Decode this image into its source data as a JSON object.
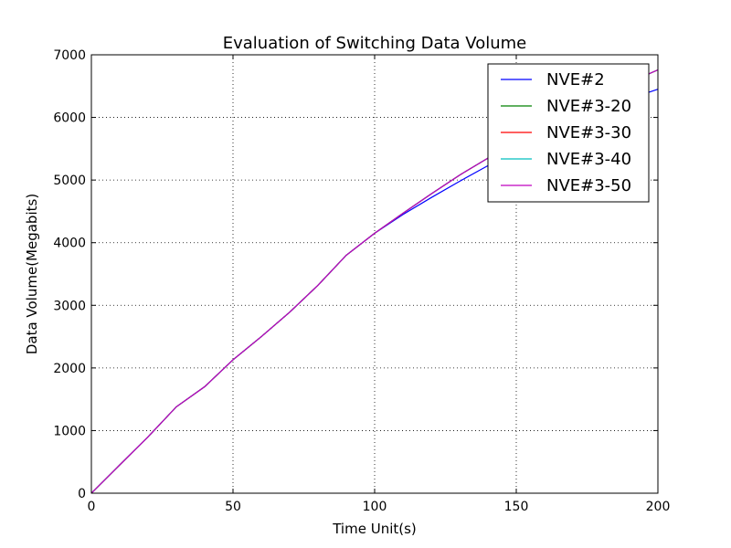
{
  "chart_data": {
    "type": "line",
    "title": "Evaluation of Switching Data Volume",
    "xlabel": "Time Unit(s)",
    "ylabel": "Data Volume(Megabits)",
    "xlim": [
      0,
      200
    ],
    "ylim": [
      0,
      7000
    ],
    "xticks": [
      0,
      50,
      100,
      150,
      200
    ],
    "yticks": [
      0,
      1000,
      2000,
      3000,
      4000,
      5000,
      6000,
      7000
    ],
    "grid": true,
    "legend_position": "top-right",
    "x": [
      0,
      10,
      20,
      30,
      40,
      50,
      60,
      70,
      80,
      90,
      100,
      110,
      120,
      130,
      140,
      150,
      160,
      170,
      180,
      190,
      200
    ],
    "series": [
      {
        "name": "NVE#2",
        "color": "#0000ff",
        "values": [
          0,
          450,
          900,
          1380,
          1700,
          2130,
          2500,
          2890,
          3320,
          3800,
          4150,
          4450,
          4720,
          4980,
          5230,
          5450,
          5680,
          5900,
          6100,
          6300,
          6450
        ]
      },
      {
        "name": "NVE#3-20",
        "color": "#008000",
        "values": [
          0,
          450,
          900,
          1380,
          1700,
          2130,
          2500,
          2890,
          3320,
          3800,
          4150,
          4470,
          4780,
          5080,
          5350,
          5610,
          5860,
          6090,
          6320,
          6560,
          6760
        ]
      },
      {
        "name": "NVE#3-30",
        "color": "#ff0000",
        "values": [
          0,
          450,
          900,
          1380,
          1700,
          2130,
          2500,
          2890,
          3320,
          3800,
          4150,
          4470,
          4780,
          5080,
          5350,
          5610,
          5860,
          6090,
          6320,
          6560,
          6760
        ]
      },
      {
        "name": "NVE#3-40",
        "color": "#00bfbf",
        "values": [
          0,
          450,
          900,
          1380,
          1700,
          2130,
          2500,
          2890,
          3320,
          3800,
          4150,
          4470,
          4780,
          5080,
          5350,
          5610,
          5860,
          6090,
          6320,
          6560,
          6760
        ]
      },
      {
        "name": "NVE#3-50",
        "color": "#bf00bf",
        "values": [
          0,
          450,
          900,
          1380,
          1700,
          2130,
          2500,
          2890,
          3320,
          3800,
          4150,
          4470,
          4780,
          5080,
          5350,
          5610,
          5860,
          6090,
          6320,
          6560,
          6760
        ]
      }
    ]
  }
}
